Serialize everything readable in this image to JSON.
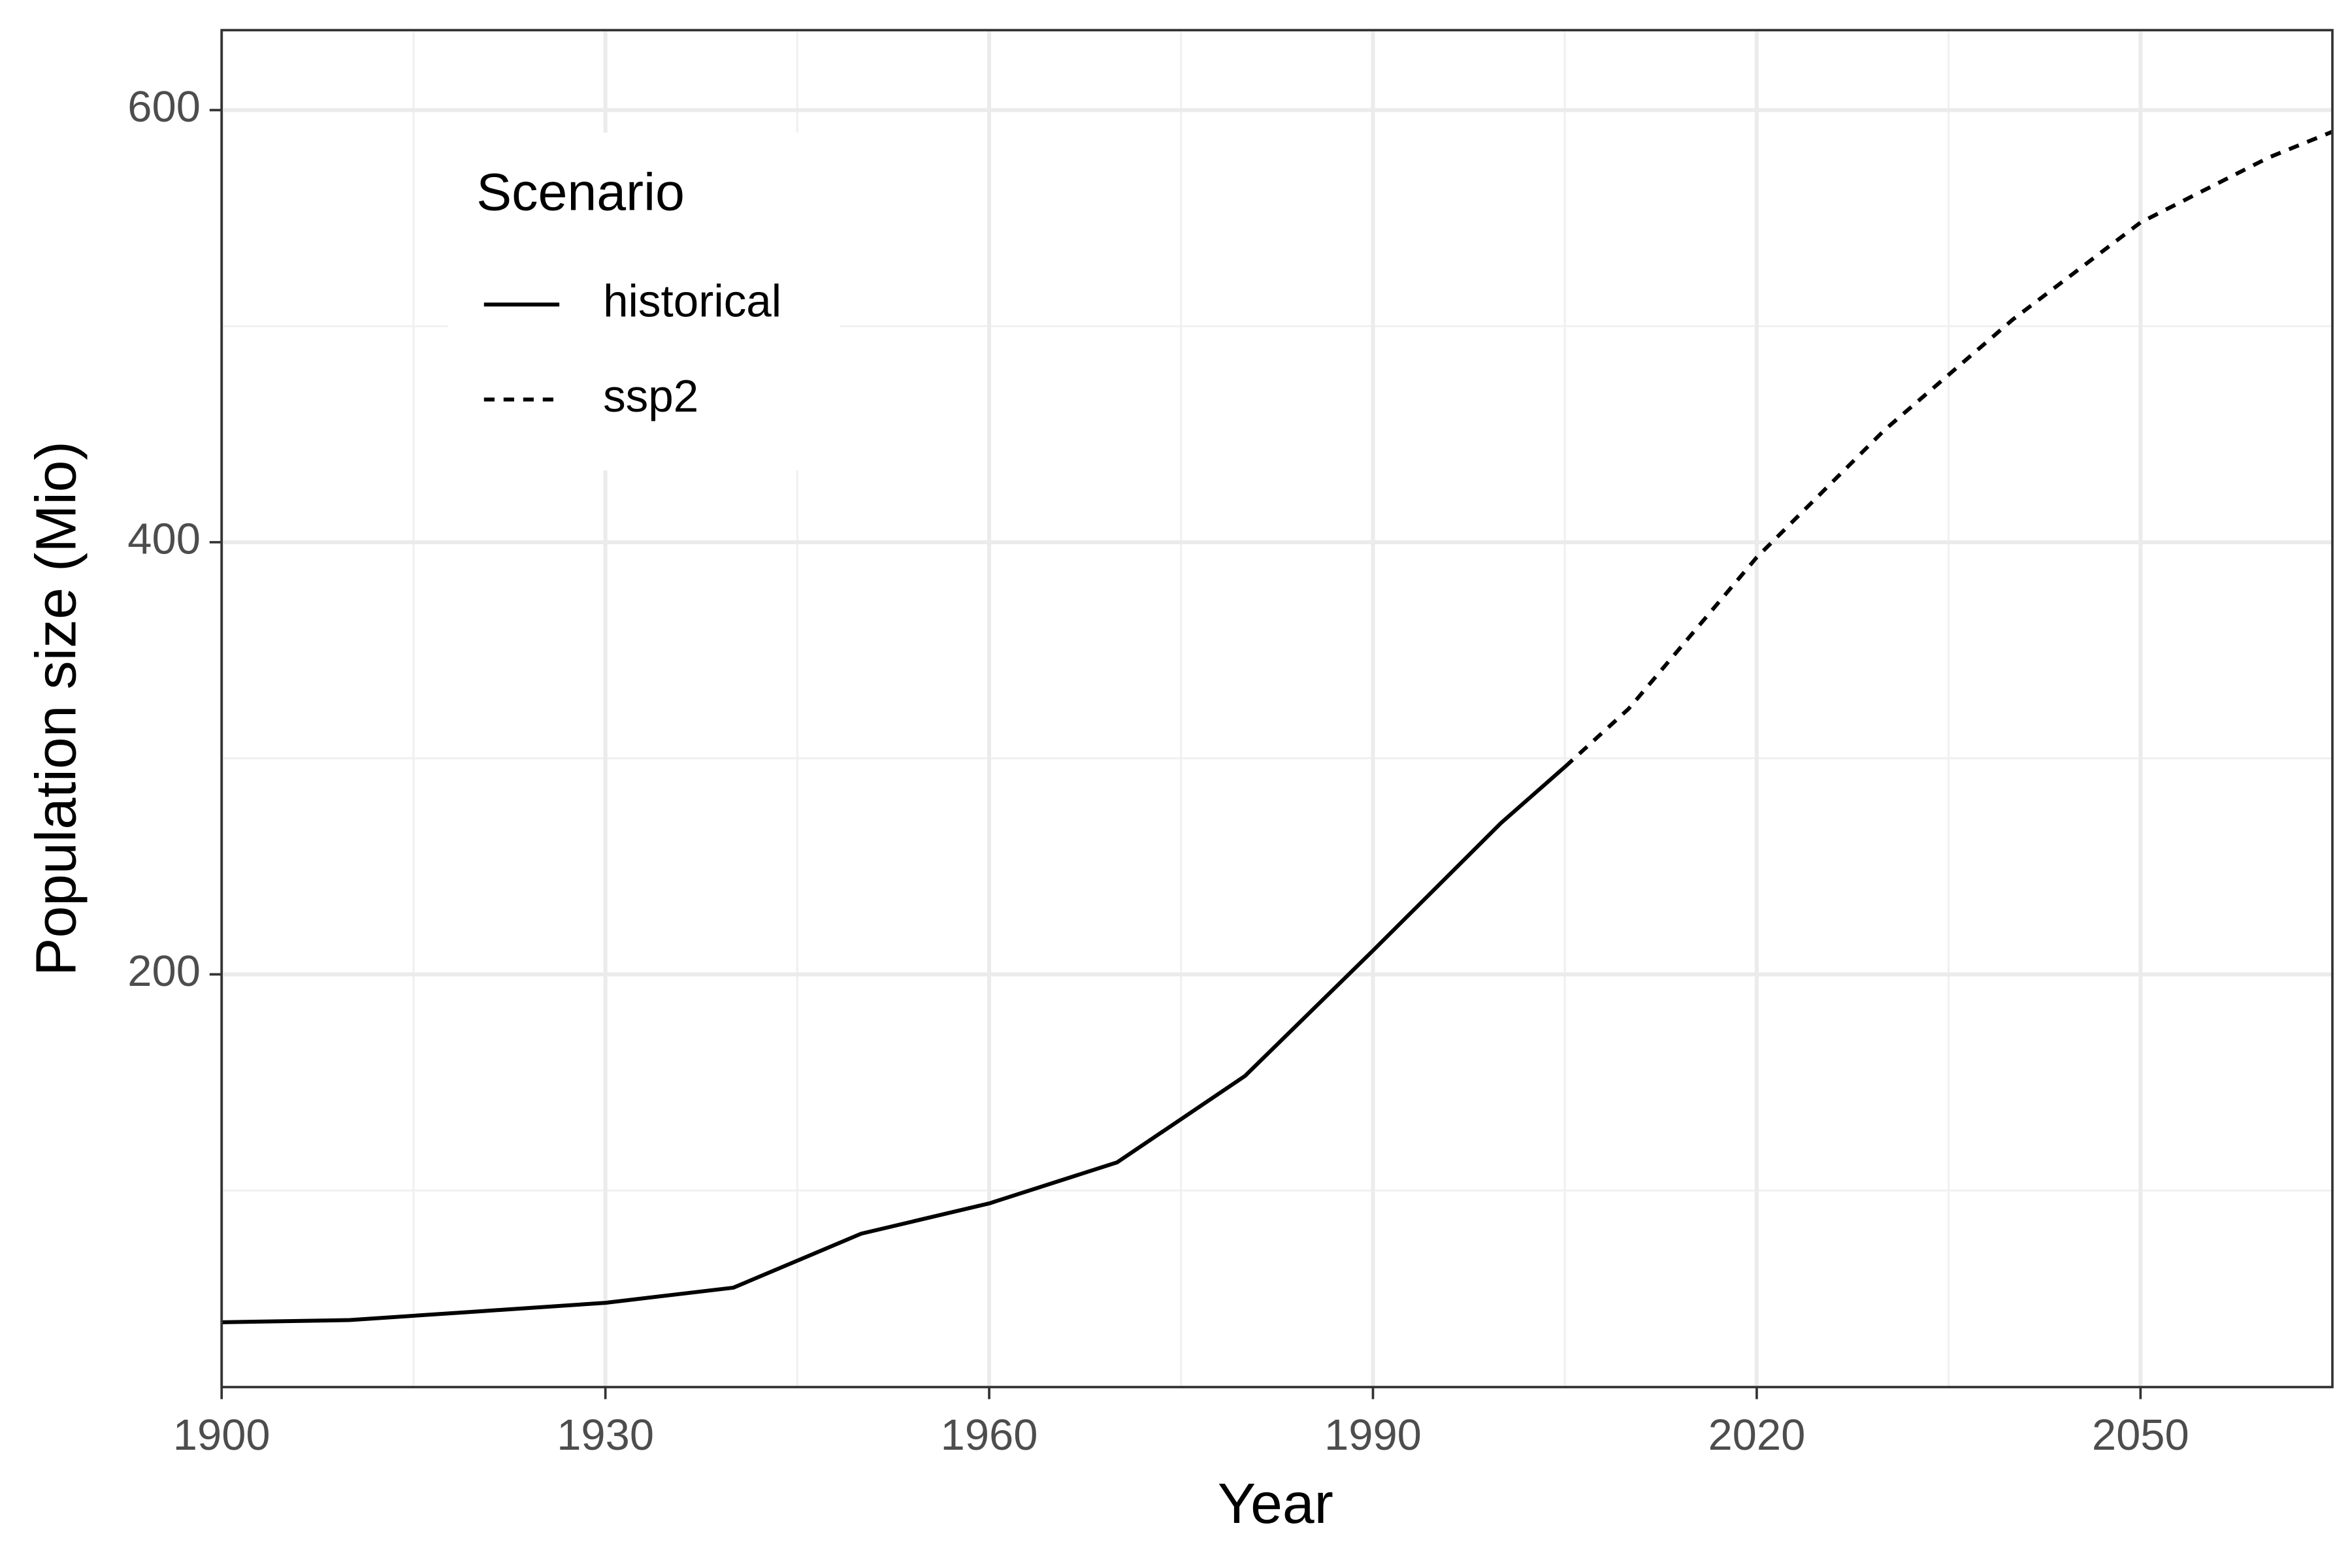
{
  "chart_data": {
    "type": "line",
    "x_label": "Year",
    "y_label": "Population size (Mio)",
    "legend_title": "Scenario",
    "legend_position": "top-left",
    "xlim": [
      1900,
      2065
    ],
    "xticks": [
      1900,
      1930,
      1960,
      1990,
      2020,
      2050
    ],
    "minor_xticks": [
      1915,
      1945,
      1975,
      2005,
      2035
    ],
    "ylim": [
      9,
      637
    ],
    "yticks": [
      200,
      400,
      600
    ],
    "minor_yticks": [
      100,
      300,
      500
    ],
    "grid": true,
    "series": [
      {
        "name": "historical",
        "color": "#000000",
        "dash": "solid",
        "x": [
          1900,
          1910,
          1920,
          1930,
          1940,
          1950,
          1960,
          1970,
          1980,
          1990,
          2000,
          2005
        ],
        "values": [
          39,
          40,
          44,
          48,
          55,
          80,
          94,
          113,
          153,
          211,
          270,
          296
        ]
      },
      {
        "name": "ssp2",
        "color": "#000000",
        "dash": "dashed",
        "x": [
          2005,
          2010,
          2020,
          2030,
          2040,
          2050,
          2060,
          2065
        ],
        "values": [
          296,
          323,
          393,
          452,
          503,
          548,
          578,
          590
        ]
      }
    ]
  }
}
